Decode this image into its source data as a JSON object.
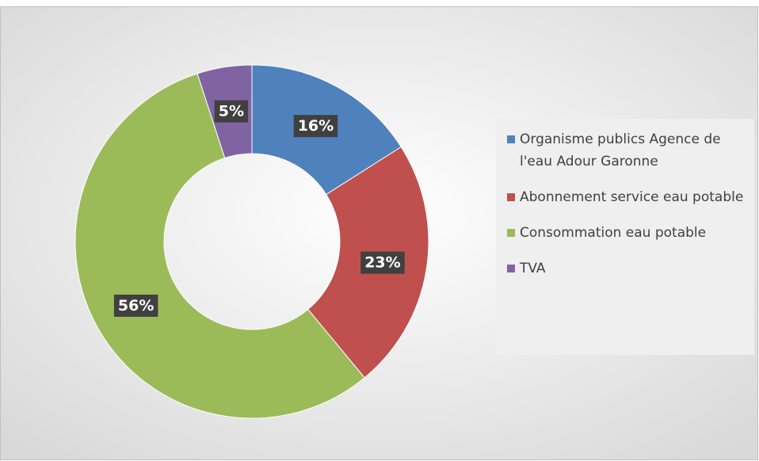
{
  "chart_data": {
    "type": "donut",
    "categories": [
      "Organisme publics Agence de l'eau Adour Garonne",
      "Abonnement service eau potable",
      "Consommation eau potable",
      "TVA"
    ],
    "values": [
      16,
      23,
      56,
      5
    ],
    "value_labels": [
      "16%",
      "23%",
      "56%",
      "5%"
    ],
    "colors": [
      "#4f81bd",
      "#c0504d",
      "#9bbb59",
      "#8064a2"
    ],
    "legend": "right"
  }
}
